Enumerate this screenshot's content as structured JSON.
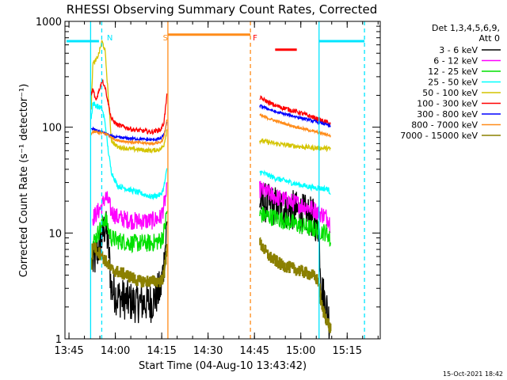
{
  "chart_data": {
    "type": "line",
    "title": "RHESSI Observing Summary Count Rates, Corrected",
    "xlabel": "Start Time (04-Aug-10 13:43:42)",
    "ylabel": "Corrected Count Rate (s⁻¹ detector⁻¹)",
    "yscale": "log",
    "ylim": [
      1,
      1000
    ],
    "xlim_minutes": [
      0,
      102
    ],
    "x_ticks": [
      {
        "label": "13:45",
        "minutes": 1.3
      },
      {
        "label": "14:00",
        "minutes": 16.3
      },
      {
        "label": "14:15",
        "minutes": 31.3
      },
      {
        "label": "14:30",
        "minutes": 46.3
      },
      {
        "label": "14:45",
        "minutes": 61.3
      },
      {
        "label": "15:00",
        "minutes": 76.3
      },
      {
        "label": "15:15",
        "minutes": 91.3
      }
    ],
    "y_ticks": [
      {
        "label": "1",
        "value": 1
      },
      {
        "label": "10",
        "value": 10
      },
      {
        "label": "100",
        "value": 100
      },
      {
        "label": "1000",
        "value": 1000
      }
    ],
    "legend_header": [
      "Det 1,3,4,5,6,9,",
      "Att 0"
    ],
    "legend_position": "right",
    "timestamp": "15-Oct-2021 18:42",
    "flags": [
      {
        "label": "N",
        "color": "#00e5ff",
        "x_minutes": 14.5
      },
      {
        "label": "S",
        "color": "#ff8c1a",
        "x_minutes": 32.5
      },
      {
        "label": "F",
        "color": "#ff0000",
        "x_minutes": 61.5
      }
    ],
    "vertical_lines": [
      {
        "x_minutes": 8.3,
        "color": "#00e5ff",
        "style": "solid"
      },
      {
        "x_minutes": 11.9,
        "color": "#00e5ff",
        "style": "dashed"
      },
      {
        "x_minutes": 33.3,
        "color": "#ff8c1a",
        "style": "solid"
      },
      {
        "x_minutes": 60.0,
        "color": "#ff8c1a",
        "style": "dashed"
      },
      {
        "x_minutes": 82.2,
        "color": "#00e5ff",
        "style": "solid"
      },
      {
        "x_minutes": 96.9,
        "color": "#00e5ff",
        "style": "dashed"
      }
    ],
    "horizontal_bars": [
      {
        "x0": 0.5,
        "x1": 11.0,
        "value": 650,
        "color": "#00e5ff"
      },
      {
        "x0": 33.3,
        "x1": 60.0,
        "value": 750,
        "color": "#ff8c1a"
      },
      {
        "x0": 68.0,
        "x1": 75.0,
        "value": 540,
        "color": "#ff0000"
      },
      {
        "x0": 82.2,
        "x1": 96.9,
        "value": 650,
        "color": "#00e5ff"
      }
    ],
    "series": [
      {
        "name": "3 - 6 keV",
        "color": "#000000",
        "noise": 0.45,
        "x": [
          9,
          10,
          12,
          13,
          14,
          15,
          17,
          22,
          28,
          31,
          32,
          33,
          63,
          68,
          75,
          80,
          82,
          83,
          85,
          86
        ],
        "y": [
          5,
          6,
          9,
          12,
          8,
          3,
          2.5,
          2.2,
          2.2,
          3,
          5,
          12,
          20,
          18,
          16,
          14,
          12,
          3,
          1.8,
          1.2
        ]
      },
      {
        "name": "6 - 12 keV",
        "color": "#ff00ff",
        "noise": 0.2,
        "x": [
          9,
          10,
          12,
          13,
          14,
          15,
          17,
          22,
          28,
          31,
          32,
          33,
          63,
          68,
          75,
          80,
          85,
          86
        ],
        "y": [
          14,
          15,
          18,
          22,
          20,
          16,
          14,
          13,
          13,
          14,
          18,
          25,
          26,
          22,
          19,
          17,
          14,
          12
        ]
      },
      {
        "name": "12 - 25 keV",
        "color": "#00e000",
        "noise": 0.2,
        "x": [
          9,
          10,
          12,
          13,
          14,
          15,
          17,
          22,
          28,
          31,
          32,
          33,
          63,
          68,
          75,
          80,
          85,
          86
        ],
        "y": [
          8,
          9,
          12,
          14,
          11,
          9,
          8.5,
          8,
          8,
          8.5,
          10,
          16,
          15,
          14,
          12,
          11,
          10,
          8
        ]
      },
      {
        "name": "25 - 50 keV",
        "color": "#00ffff",
        "noise": 0.06,
        "x": [
          8.5,
          9,
          10,
          12,
          13,
          14,
          15,
          17,
          22,
          28,
          31,
          32,
          33,
          63,
          68,
          75,
          80,
          85,
          86
        ],
        "y": [
          120,
          170,
          160,
          150,
          110,
          60,
          38,
          28,
          25,
          22,
          23,
          27,
          40,
          38,
          33,
          29,
          27,
          26,
          24
        ]
      },
      {
        "name": "50 - 100 keV",
        "color": "#d4c400",
        "noise": 0.05,
        "x": [
          8.5,
          9,
          10,
          11,
          12,
          13,
          14,
          15,
          17,
          22,
          28,
          31,
          32,
          33,
          63,
          68,
          75,
          80,
          85,
          86
        ],
        "y": [
          150,
          400,
          420,
          500,
          650,
          520,
          200,
          75,
          65,
          62,
          60,
          62,
          68,
          95,
          75,
          70,
          66,
          64,
          63,
          62
        ]
      },
      {
        "name": "100 - 300 keV",
        "color": "#ff0000",
        "noise": 0.05,
        "x": [
          8.5,
          9,
          10,
          11,
          12,
          13,
          14,
          15,
          17,
          22,
          28,
          31,
          32,
          33,
          63,
          68,
          75,
          80,
          85,
          86
        ],
        "y": [
          200,
          230,
          180,
          220,
          280,
          240,
          170,
          120,
          105,
          95,
          90,
          95,
          110,
          200,
          190,
          160,
          140,
          125,
          110,
          105
        ]
      },
      {
        "name": "300 - 800 keV",
        "color": "#0000ff",
        "noise": 0.03,
        "x": [
          8.5,
          9,
          10,
          12,
          14,
          15,
          17,
          22,
          28,
          31,
          32,
          33,
          63,
          68,
          75,
          80,
          85,
          86
        ],
        "y": [
          95,
          96,
          94,
          90,
          85,
          82,
          80,
          78,
          76,
          78,
          85,
          110,
          160,
          140,
          125,
          115,
          105,
          100
        ]
      },
      {
        "name": "800 - 7000 keV",
        "color": "#ff8c1a",
        "noise": 0.03,
        "x": [
          8.5,
          9,
          10,
          12,
          14,
          15,
          17,
          22,
          28,
          31,
          32,
          33,
          63,
          68,
          75,
          80,
          85,
          86
        ],
        "y": [
          88,
          90,
          90,
          88,
          85,
          80,
          75,
          72,
          70,
          72,
          80,
          120,
          130,
          115,
          100,
          92,
          85,
          82
        ]
      },
      {
        "name": "7000 - 15000 keV",
        "color": "#8b8000",
        "noise": 0.12,
        "step": true,
        "x": [
          8.5,
          9,
          10,
          12,
          13,
          14,
          15,
          17,
          20,
          24,
          28,
          31,
          32,
          33,
          63,
          66,
          70,
          75,
          80,
          82,
          83,
          86
        ],
        "y": [
          5,
          8,
          7,
          6,
          5.5,
          5,
          4.5,
          4.3,
          4,
          3.5,
          3.5,
          3.5,
          4,
          8,
          8,
          6,
          5,
          4.5,
          4,
          3.5,
          2,
          1.2
        ]
      }
    ]
  }
}
